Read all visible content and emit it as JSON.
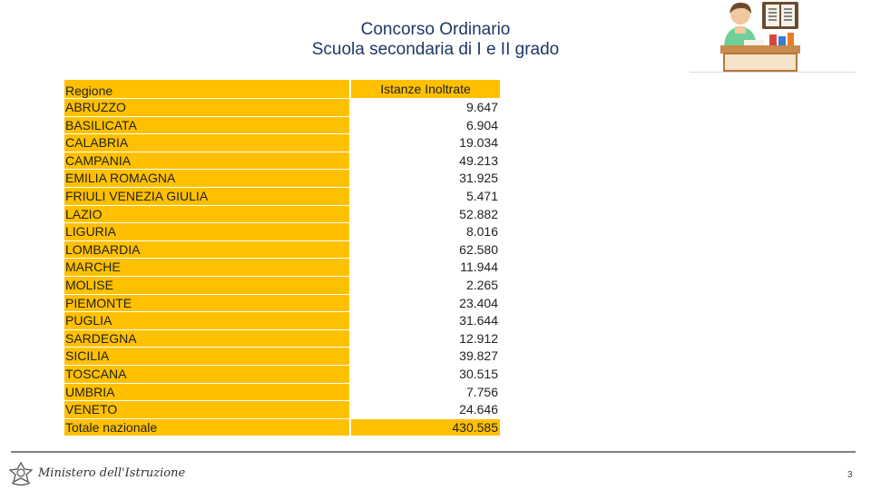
{
  "slide": {
    "title_line1": "Concorso Ordinario",
    "title_line2": "Scuola secondaria di I e II grado",
    "footer_ministry": "Ministero dell'Istruzione",
    "page_number": "3"
  },
  "table": {
    "header_region": "Regione",
    "header_value": "Istanze Inoltrate",
    "rows": [
      {
        "region": "ABRUZZO",
        "value": "9.647"
      },
      {
        "region": "BASILICATA",
        "value": "6.904"
      },
      {
        "region": "CALABRIA",
        "value": "19.034"
      },
      {
        "region": "CAMPANIA",
        "value": "49.213"
      },
      {
        "region": "EMILIA ROMAGNA",
        "value": "31.925"
      },
      {
        "region": "FRIULI VENEZIA GIULIA",
        "value": "5.471"
      },
      {
        "region": "LAZIO",
        "value": "52.882"
      },
      {
        "region": "LIGURIA",
        "value": "8.016"
      },
      {
        "region": "LOMBARDIA",
        "value": "62.580"
      },
      {
        "region": "MARCHE",
        "value": "11.944"
      },
      {
        "region": "MOLISE",
        "value": "2.265"
      },
      {
        "region": "PIEMONTE",
        "value": "23.404"
      },
      {
        "region": "PUGLIA",
        "value": "31.644"
      },
      {
        "region": "SARDEGNA",
        "value": "12.912"
      },
      {
        "region": "SICILIA",
        "value": "39.827"
      },
      {
        "region": "TOSCANA",
        "value": "30.515"
      },
      {
        "region": "UMBRIA",
        "value": "7.756"
      },
      {
        "region": "VENETO",
        "value": "24.646"
      }
    ],
    "total_label": "Totale nazionale",
    "total_value": "430.585"
  },
  "colors": {
    "accent": "#ffc000",
    "title": "#1f3864"
  },
  "icons": [
    "teacher-at-desk-icon",
    "italian-republic-emblem-icon"
  ]
}
